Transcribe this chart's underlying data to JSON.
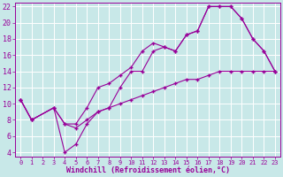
{
  "background_color": "#c8e8e8",
  "grid_color": "#ffffff",
  "line_color": "#990099",
  "marker": "+",
  "xlabel": "Windchill (Refroidissement éolien,°C)",
  "ylabel_ticks": [
    4,
    6,
    8,
    10,
    12,
    14,
    16,
    18,
    20,
    22
  ],
  "xlabel_ticks": [
    0,
    1,
    2,
    3,
    4,
    5,
    6,
    7,
    8,
    9,
    10,
    11,
    12,
    13,
    14,
    15,
    16,
    17,
    18,
    19,
    20,
    21,
    22,
    23
  ],
  "xlim": [
    0,
    23
  ],
  "ylim": [
    3.5,
    22.5
  ],
  "series1_x": [
    0,
    1,
    3,
    4,
    5,
    6,
    7,
    8,
    9,
    10,
    11,
    12,
    13,
    14,
    15,
    16,
    17,
    18,
    19,
    20,
    21,
    22,
    23
  ],
  "series1_y": [
    10.5,
    8.0,
    9.5,
    4.0,
    5.0,
    7.5,
    9.0,
    9.5,
    12.0,
    14.0,
    14.0,
    16.5,
    17.0,
    16.5,
    18.5,
    19.0,
    22.0,
    22.0,
    22.0,
    20.5,
    18.0,
    16.5,
    14.0
  ],
  "series2_x": [
    0,
    1,
    3,
    4,
    5,
    6,
    7,
    8,
    9,
    10,
    11,
    12,
    13,
    14,
    15,
    16,
    17,
    18,
    19,
    20,
    21,
    22,
    23
  ],
  "series2_y": [
    10.5,
    8.0,
    9.5,
    7.5,
    7.5,
    9.5,
    12.0,
    12.5,
    13.5,
    14.5,
    16.5,
    17.5,
    17.0,
    16.5,
    18.5,
    19.0,
    22.0,
    22.0,
    22.0,
    20.5,
    18.0,
    16.5,
    14.0
  ],
  "series3_x": [
    0,
    1,
    3,
    4,
    5,
    6,
    7,
    8,
    9,
    10,
    11,
    12,
    13,
    14,
    15,
    16,
    17,
    18,
    19,
    20,
    21,
    22,
    23
  ],
  "series3_y": [
    10.5,
    8.0,
    9.5,
    7.5,
    7.0,
    8.0,
    9.0,
    9.5,
    10.0,
    10.5,
    11.0,
    11.5,
    12.0,
    12.5,
    13.0,
    13.0,
    13.5,
    14.0,
    14.0,
    14.0,
    14.0,
    14.0,
    14.0
  ]
}
